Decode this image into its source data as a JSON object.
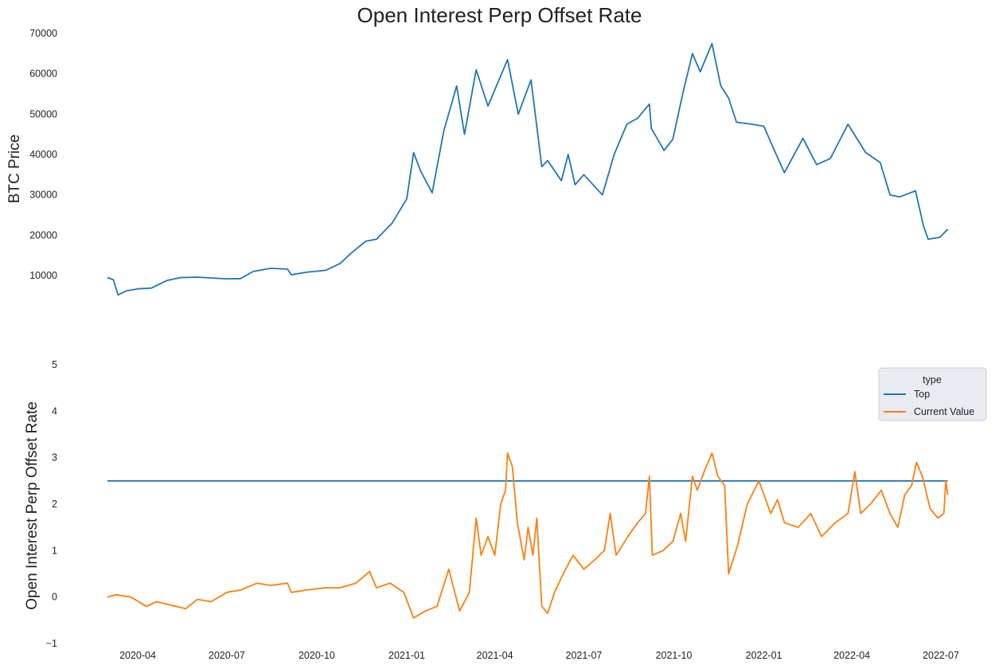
{
  "title": "Open Interest Perp Offset Rate",
  "colors": {
    "price": "#1f77b4",
    "top": "#1f77b4",
    "current": "#ff7f0e",
    "legend_bg": "#eaeaf2"
  },
  "chart_data": [
    {
      "type": "line",
      "title": "Open Interest Perp Offset Rate",
      "ylabel": "BTC  Price",
      "xlabel": "",
      "grid": false,
      "ylim": [
        4000,
        70000
      ],
      "yticks": [
        10000,
        20000,
        30000,
        40000,
        50000,
        60000,
        70000
      ],
      "xticks": [
        "2020-04",
        "2020-07",
        "2020-10",
        "2021-01",
        "2021-04",
        "2021-07",
        "2021-10",
        "2022-01",
        "2022-04",
        "2022-07"
      ],
      "series": [
        {
          "points": [
            [
              "2020-03-01",
              9500
            ],
            [
              "2020-03-07",
              9000
            ],
            [
              "2020-03-12",
              5200
            ],
            [
              "2020-03-20",
              6200
            ],
            [
              "2020-04-01",
              6700
            ],
            [
              "2020-04-15",
              6900
            ],
            [
              "2020-05-01",
              8800
            ],
            [
              "2020-05-15",
              9500
            ],
            [
              "2020-06-01",
              9600
            ],
            [
              "2020-06-15",
              9400
            ],
            [
              "2020-07-01",
              9200
            ],
            [
              "2020-07-15",
              9250
            ],
            [
              "2020-07-28",
              11000
            ],
            [
              "2020-08-15",
              11800
            ],
            [
              "2020-09-01",
              11600
            ],
            [
              "2020-09-05",
              10200
            ],
            [
              "2020-09-20",
              10800
            ],
            [
              "2020-10-10",
              11300
            ],
            [
              "2020-10-25",
              13000
            ],
            [
              "2020-11-05",
              15500
            ],
            [
              "2020-11-20",
              18500
            ],
            [
              "2020-12-01",
              19000
            ],
            [
              "2020-12-17",
              23000
            ],
            [
              "2021-01-01",
              29000
            ],
            [
              "2021-01-08",
              40500
            ],
            [
              "2021-01-15",
              36000
            ],
            [
              "2021-01-27",
              30500
            ],
            [
              "2021-02-08",
              46000
            ],
            [
              "2021-02-21",
              57000
            ],
            [
              "2021-03-01",
              45000
            ],
            [
              "2021-03-13",
              61000
            ],
            [
              "2021-03-25",
              52000
            ],
            [
              "2021-04-14",
              63500
            ],
            [
              "2021-04-25",
              50000
            ],
            [
              "2021-05-08",
              58500
            ],
            [
              "2021-05-19",
              37000
            ],
            [
              "2021-05-25",
              38500
            ],
            [
              "2021-06-08",
              33500
            ],
            [
              "2021-06-15",
              40000
            ],
            [
              "2021-06-22",
              32500
            ],
            [
              "2021-07-01",
              35000
            ],
            [
              "2021-07-20",
              30000
            ],
            [
              "2021-08-01",
              40000
            ],
            [
              "2021-08-14",
              47500
            ],
            [
              "2021-08-25",
              49000
            ],
            [
              "2021-09-06",
              52500
            ],
            [
              "2021-09-08",
              46500
            ],
            [
              "2021-09-21",
              41000
            ],
            [
              "2021-09-30",
              43800
            ],
            [
              "2021-10-10",
              55000
            ],
            [
              "2021-10-20",
              65000
            ],
            [
              "2021-10-28",
              60500
            ],
            [
              "2021-11-09",
              67500
            ],
            [
              "2021-11-18",
              57000
            ],
            [
              "2021-11-26",
              54000
            ],
            [
              "2021-12-04",
              48000
            ],
            [
              "2021-12-20",
              47500
            ],
            [
              "2022-01-01",
              47000
            ],
            [
              "2022-01-10",
              42000
            ],
            [
              "2022-01-22",
              35500
            ],
            [
              "2022-02-10",
              44000
            ],
            [
              "2022-02-24",
              37500
            ],
            [
              "2022-03-10",
              39000
            ],
            [
              "2022-03-28",
              47500
            ],
            [
              "2022-04-15",
              40500
            ],
            [
              "2022-04-30",
              38000
            ],
            [
              "2022-05-10",
              30000
            ],
            [
              "2022-05-20",
              29500
            ],
            [
              "2022-06-05",
              31000
            ],
            [
              "2022-06-13",
              22500
            ],
            [
              "2022-06-18",
              19000
            ],
            [
              "2022-06-30",
              19500
            ],
            [
              "2022-07-08",
              21500
            ]
          ]
        }
      ]
    },
    {
      "type": "line",
      "title": "",
      "ylabel": "Open Interest Perp Offset Rate",
      "xlabel": "",
      "grid": false,
      "ylim": [
        -1,
        5
      ],
      "yticks": [
        -1,
        0,
        1,
        2,
        3,
        4,
        5
      ],
      "xticks": [
        "2020-04",
        "2020-07",
        "2020-10",
        "2021-01",
        "2021-04",
        "2021-07",
        "2021-10",
        "2022-01",
        "2022-04",
        "2022-07"
      ],
      "legend": {
        "title": "type",
        "position": "upper right"
      },
      "series": [
        {
          "name": "Top",
          "constant": 2.5,
          "range": [
            "2020-03-01",
            "2022-07-08"
          ]
        },
        {
          "name": "Current Value",
          "points": [
            [
              "2020-03-01",
              0.0
            ],
            [
              "2020-03-10",
              0.05
            ],
            [
              "2020-03-25",
              0.0
            ],
            [
              "2020-04-10",
              -0.2
            ],
            [
              "2020-04-20",
              -0.1
            ],
            [
              "2020-05-10",
              -0.2
            ],
            [
              "2020-05-20",
              -0.25
            ],
            [
              "2020-06-01",
              -0.05
            ],
            [
              "2020-06-15",
              -0.1
            ],
            [
              "2020-07-01",
              0.1
            ],
            [
              "2020-07-15",
              0.15
            ],
            [
              "2020-08-01",
              0.3
            ],
            [
              "2020-08-15",
              0.25
            ],
            [
              "2020-09-01",
              0.3
            ],
            [
              "2020-09-05",
              0.1
            ],
            [
              "2020-09-20",
              0.15
            ],
            [
              "2020-10-10",
              0.2
            ],
            [
              "2020-10-25",
              0.2
            ],
            [
              "2020-11-10",
              0.3
            ],
            [
              "2020-11-24",
              0.55
            ],
            [
              "2020-12-01",
              0.2
            ],
            [
              "2020-12-15",
              0.3
            ],
            [
              "2020-12-29",
              0.1
            ],
            [
              "2021-01-08",
              -0.45
            ],
            [
              "2021-01-20",
              -0.3
            ],
            [
              "2021-02-01",
              -0.2
            ],
            [
              "2021-02-13",
              0.6
            ],
            [
              "2021-02-24",
              -0.3
            ],
            [
              "2021-03-06",
              0.1
            ],
            [
              "2021-03-13",
              1.7
            ],
            [
              "2021-03-18",
              0.9
            ],
            [
              "2021-03-25",
              1.3
            ],
            [
              "2021-04-01",
              0.9
            ],
            [
              "2021-04-07",
              2.0
            ],
            [
              "2021-04-12",
              2.3
            ],
            [
              "2021-04-14",
              3.1
            ],
            [
              "2021-04-19",
              2.8
            ],
            [
              "2021-04-24",
              1.6
            ],
            [
              "2021-05-01",
              0.8
            ],
            [
              "2021-05-05",
              1.5
            ],
            [
              "2021-05-10",
              0.9
            ],
            [
              "2021-05-14",
              1.7
            ],
            [
              "2021-05-19",
              -0.2
            ],
            [
              "2021-05-25",
              -0.35
            ],
            [
              "2021-06-01",
              0.1
            ],
            [
              "2021-06-10",
              0.5
            ],
            [
              "2021-06-20",
              0.9
            ],
            [
              "2021-07-01",
              0.6
            ],
            [
              "2021-07-12",
              0.8
            ],
            [
              "2021-07-22",
              1.0
            ],
            [
              "2021-07-28",
              1.8
            ],
            [
              "2021-08-03",
              0.9
            ],
            [
              "2021-08-15",
              1.3
            ],
            [
              "2021-08-25",
              1.6
            ],
            [
              "2021-09-02",
              1.8
            ],
            [
              "2021-09-06",
              2.6
            ],
            [
              "2021-09-09",
              0.9
            ],
            [
              "2021-09-20",
              1.0
            ],
            [
              "2021-09-30",
              1.2
            ],
            [
              "2021-10-08",
              1.8
            ],
            [
              "2021-10-13",
              1.2
            ],
            [
              "2021-10-20",
              2.6
            ],
            [
              "2021-10-25",
              2.3
            ],
            [
              "2021-11-01",
              2.7
            ],
            [
              "2021-11-09",
              3.1
            ],
            [
              "2021-11-15",
              2.6
            ],
            [
              "2021-11-22",
              2.4
            ],
            [
              "2021-11-26",
              0.5
            ],
            [
              "2021-12-05",
              1.1
            ],
            [
              "2021-12-15",
              2.0
            ],
            [
              "2021-12-27",
              2.5
            ],
            [
              "2022-01-08",
              1.8
            ],
            [
              "2022-01-15",
              2.1
            ],
            [
              "2022-01-22",
              1.6
            ],
            [
              "2022-02-05",
              1.5
            ],
            [
              "2022-02-18",
              1.8
            ],
            [
              "2022-03-01",
              1.3
            ],
            [
              "2022-03-15",
              1.6
            ],
            [
              "2022-03-28",
              1.8
            ],
            [
              "2022-04-04",
              2.7
            ],
            [
              "2022-04-10",
              1.8
            ],
            [
              "2022-04-20",
              2.0
            ],
            [
              "2022-05-01",
              2.3
            ],
            [
              "2022-05-10",
              1.8
            ],
            [
              "2022-05-18",
              1.5
            ],
            [
              "2022-05-25",
              2.2
            ],
            [
              "2022-06-01",
              2.4
            ],
            [
              "2022-06-06",
              2.9
            ],
            [
              "2022-06-12",
              2.6
            ],
            [
              "2022-06-20",
              1.9
            ],
            [
              "2022-06-28",
              1.7
            ],
            [
              "2022-07-04",
              1.8
            ],
            [
              "2022-07-06",
              2.5
            ],
            [
              "2022-07-08",
              2.2
            ]
          ]
        }
      ]
    }
  ]
}
